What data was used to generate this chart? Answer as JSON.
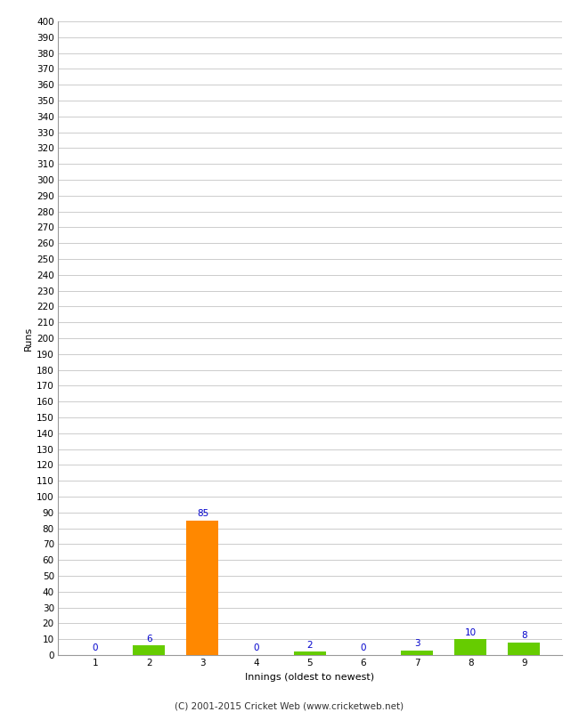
{
  "innings": [
    1,
    2,
    3,
    4,
    5,
    6,
    7,
    8,
    9
  ],
  "runs": [
    0,
    6,
    85,
    0,
    2,
    0,
    3,
    10,
    8
  ],
  "bar_colors": [
    "#66cc00",
    "#66cc00",
    "#ff8800",
    "#66cc00",
    "#66cc00",
    "#66cc00",
    "#66cc00",
    "#66cc00",
    "#66cc00"
  ],
  "ylabel": "Runs",
  "xlabel": "Innings (oldest to newest)",
  "footer": "(C) 2001-2015 Cricket Web (www.cricketweb.net)",
  "ytick_step": 10,
  "ymax": 400,
  "annotation_color": "#0000cc",
  "background_color": "#ffffff",
  "grid_color": "#cccccc",
  "spine_color": "#999999",
  "tick_label_fontsize": 7.5,
  "axis_label_fontsize": 8,
  "annotation_fontsize": 7.5,
  "footer_fontsize": 7.5
}
